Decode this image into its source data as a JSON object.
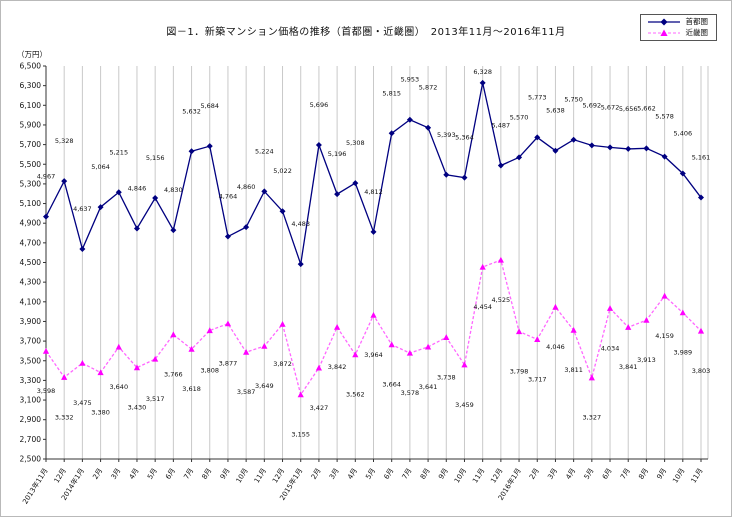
{
  "chart_data": {
    "type": "line",
    "title": "図－1．新築マンション価格の推移（首都圏・近畿圏）　2013年11月～2016年11月",
    "unit_label": "（万円）",
    "ylim": [
      2500,
      6500
    ],
    "ytick_step": 200,
    "grid": "vertical-only",
    "legend_position": "top-right",
    "categories": [
      "2013年11月",
      "12月",
      "2014年1月",
      "2月",
      "3月",
      "4月",
      "5月",
      "6月",
      "7月",
      "8月",
      "9月",
      "10月",
      "11月",
      "12月",
      "2015年1月",
      "2月",
      "3月",
      "4月",
      "5月",
      "6月",
      "7月",
      "8月",
      "9月",
      "10月",
      "11月",
      "12月",
      "2016年1月",
      "2月",
      "3月",
      "4月",
      "5月",
      "6月",
      "7月",
      "8月",
      "9月",
      "10月",
      "11月"
    ],
    "series": [
      {
        "name": "首都圏",
        "color": "#000080",
        "marker": "diamond",
        "line": "solid",
        "values": [
          4967,
          5328,
          4637,
          5064,
          5215,
          4846,
          5156,
          4830,
          5632,
          5684,
          4764,
          4860,
          5224,
          5022,
          4483,
          5696,
          5196,
          5308,
          4812,
          5815,
          5953,
          5872,
          5393,
          5364,
          6328,
          5487,
          5570,
          5773,
          5638,
          5750,
          5692,
          5672,
          5656,
          5662,
          5578,
          5406,
          5161
        ]
      },
      {
        "name": "近畿圏",
        "color": "#ff00ff",
        "line_color": "#ff66ff",
        "marker": "triangle",
        "line": "dashed",
        "values": [
          3598,
          3332,
          3475,
          3380,
          3640,
          3430,
          3517,
          3766,
          3618,
          3808,
          3877,
          3587,
          3649,
          3872,
          3155,
          3427,
          3842,
          3562,
          3964,
          3664,
          3578,
          3641,
          3738,
          3459,
          4454,
          4525,
          3798,
          3717,
          4046,
          3811,
          3327,
          4034,
          3841,
          3913,
          4159,
          3989,
          3803
        ]
      }
    ]
  }
}
